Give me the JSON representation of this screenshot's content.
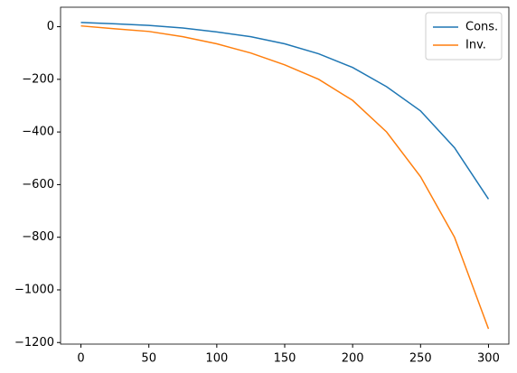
{
  "chart_data": {
    "type": "line",
    "x": [
      0,
      25,
      50,
      75,
      100,
      125,
      150,
      175,
      200,
      225,
      250,
      275,
      300
    ],
    "series": [
      {
        "name": "Cons.",
        "color": "#1f77b4",
        "values": [
          16,
          11,
          5,
          -5,
          -20,
          -38,
          -65,
          -103,
          -155,
          -228,
          -320,
          -460,
          -655
        ]
      },
      {
        "name": "Inv.",
        "color": "#ff7f0e",
        "values": [
          3,
          -8,
          -18,
          -38,
          -65,
          -100,
          -145,
          -200,
          -280,
          -400,
          -570,
          -800,
          -1148
        ]
      }
    ],
    "xlim": [
      -15,
      315
    ],
    "ylim": [
      -1206,
      74
    ],
    "xticks": [
      0,
      50,
      100,
      150,
      200,
      250,
      300
    ],
    "yticks": [
      {
        "value": -1200,
        "label": "−1200"
      },
      {
        "value": -1000,
        "label": "−1000"
      },
      {
        "value": -800,
        "label": "−800"
      },
      {
        "value": -600,
        "label": "−600"
      },
      {
        "value": -400,
        "label": "−400"
      },
      {
        "value": -200,
        "label": "−200"
      },
      0
    ],
    "legend": "upper right",
    "grid": false
  }
}
